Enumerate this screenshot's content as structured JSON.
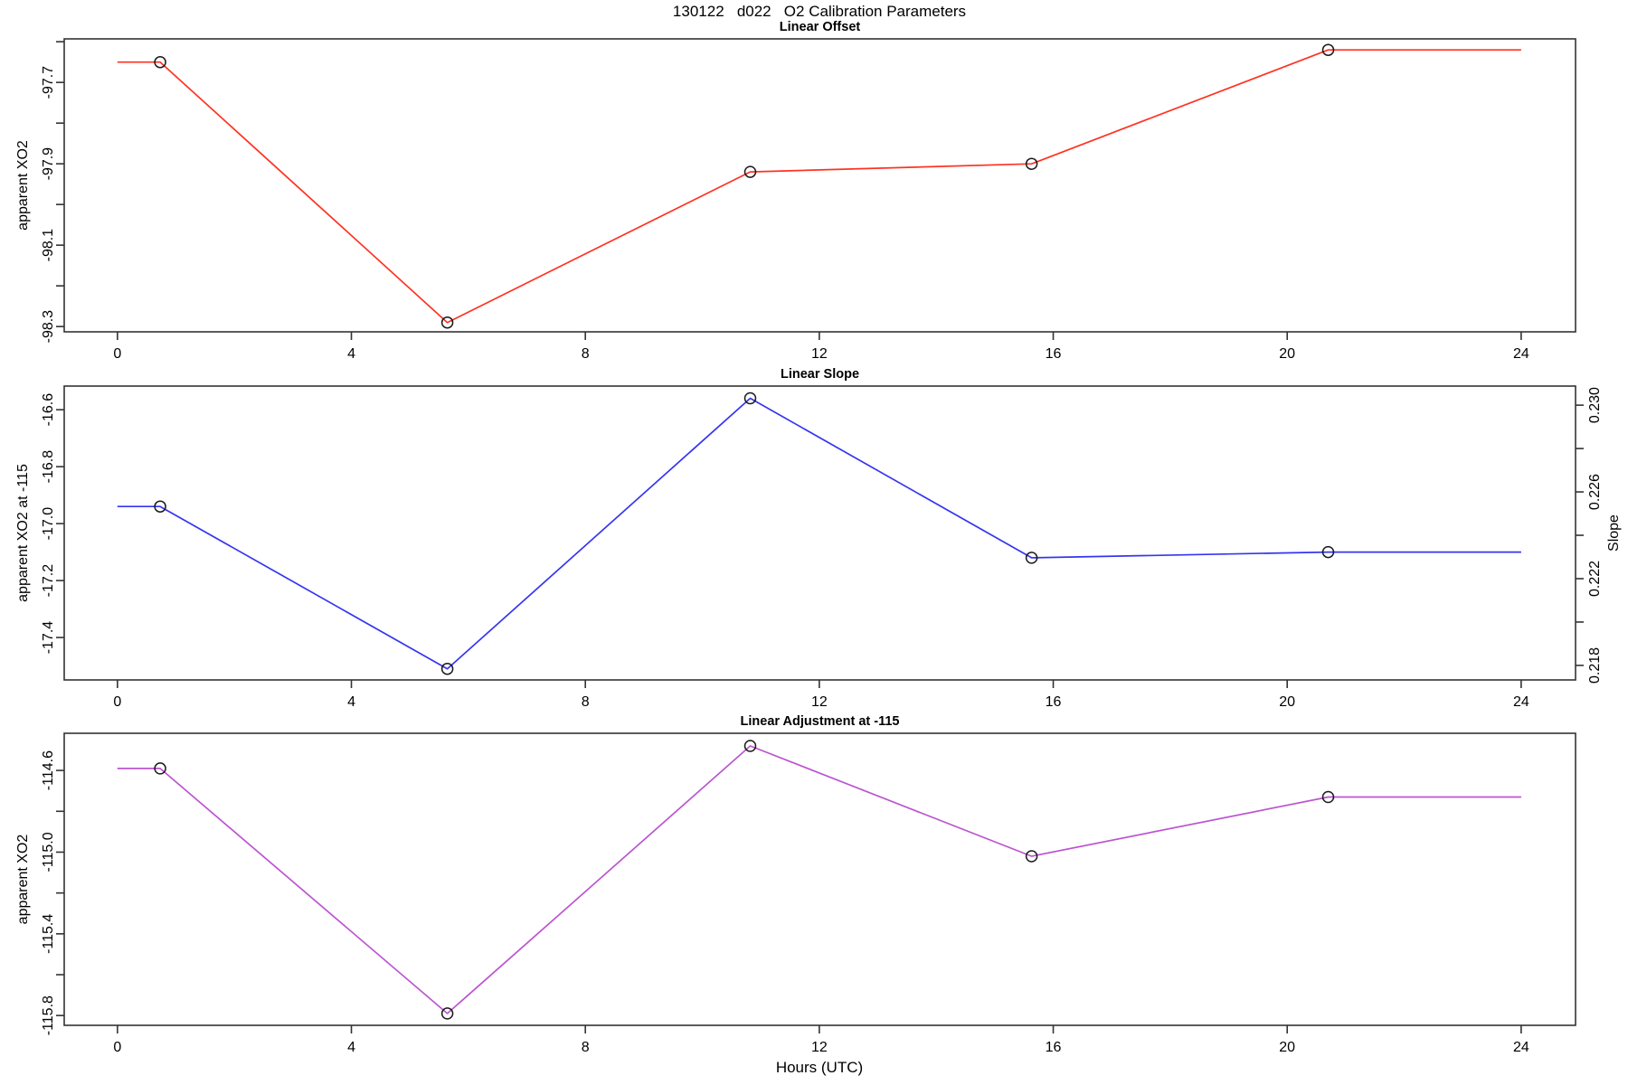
{
  "page": {
    "title": "130122   d022   O2 Calibration Parameters",
    "xlabel": "Hours (UTC)",
    "background": "#ffffff",
    "frame_color": "#333333",
    "marker_color": "#1a1a1a"
  },
  "chart_data": [
    {
      "type": "line",
      "title": "Linear Offset",
      "ylabel": "apparent XO2",
      "line_color": "#ff3222",
      "x": [
        0.73,
        5.64,
        10.82,
        15.63,
        20.7
      ],
      "values": [
        -97.65,
        -98.29,
        -97.92,
        -97.9,
        -97.62
      ],
      "extend_x": [
        0,
        24
      ],
      "xlim": [
        -0.91,
        24.93
      ],
      "ylim": [
        -98.313,
        -97.593
      ],
      "xticks": [
        0,
        4,
        8,
        12,
        16,
        20,
        24
      ],
      "yticks": [
        {
          "v": -97.6,
          "label": ""
        },
        {
          "v": -97.7,
          "label": "-97.7"
        },
        {
          "v": -97.8,
          "label": ""
        },
        {
          "v": -97.9,
          "label": "-97.9"
        },
        {
          "v": -98.0,
          "label": ""
        },
        {
          "v": -98.1,
          "label": "-98.1"
        },
        {
          "v": -98.2,
          "label": ""
        },
        {
          "v": -98.3,
          "label": "-98.3"
        }
      ]
    },
    {
      "type": "line",
      "title": "Linear Slope",
      "ylabel": "apparent XO2 at -115",
      "line_color": "#3535f0",
      "x": [
        0.73,
        5.64,
        10.82,
        15.63,
        20.7
      ],
      "values": [
        -16.94,
        -17.51,
        -16.56,
        -17.12,
        -17.1
      ],
      "extend_x": [
        0,
        24
      ],
      "xlim": [
        -0.91,
        24.93
      ],
      "ylim": [
        -17.549,
        -16.517
      ],
      "xticks": [
        0,
        4,
        8,
        12,
        16,
        20,
        24
      ],
      "yticks": [
        {
          "v": -16.6,
          "label": "-16.6"
        },
        {
          "v": -16.8,
          "label": "-16.8"
        },
        {
          "v": -17.0,
          "label": "-17.0"
        },
        {
          "v": -17.2,
          "label": "-17.2"
        },
        {
          "v": -17.4,
          "label": "-17.4"
        }
      ],
      "right_axis": {
        "label": "Slope",
        "ylim": [
          0.21733,
          0.23088
        ],
        "values": [
          0.2253,
          0.2178,
          0.2303,
          0.2229,
          0.2231
        ],
        "ticks": [
          {
            "v": 0.218,
            "label": "0.218"
          },
          {
            "v": 0.22,
            "label": ""
          },
          {
            "v": 0.222,
            "label": "0.222"
          },
          {
            "v": 0.224,
            "label": ""
          },
          {
            "v": 0.226,
            "label": "0.226"
          },
          {
            "v": 0.228,
            "label": ""
          },
          {
            "v": 0.23,
            "label": "0.230"
          }
        ]
      }
    },
    {
      "type": "line",
      "title": "Linear Adjustment at -115",
      "ylabel": "apparent XO2",
      "line_color": "#bb55d0",
      "x": [
        0.73,
        5.64,
        10.82,
        15.63,
        20.7
      ],
      "values": [
        -114.59,
        -115.79,
        -114.48,
        -115.02,
        -114.73
      ],
      "extend_x": [
        0,
        24
      ],
      "xlim": [
        -0.91,
        24.93
      ],
      "ylim": [
        -115.848,
        -114.418
      ],
      "xticks": [
        0,
        4,
        8,
        12,
        16,
        20,
        24
      ],
      "yticks": [
        {
          "v": -114.6,
          "label": "-114.6"
        },
        {
          "v": -114.8,
          "label": ""
        },
        {
          "v": -115.0,
          "label": "-115.0"
        },
        {
          "v": -115.2,
          "label": ""
        },
        {
          "v": -115.4,
          "label": "-115.4"
        },
        {
          "v": -115.6,
          "label": ""
        },
        {
          "v": -115.8,
          "label": "-115.8"
        }
      ]
    }
  ]
}
